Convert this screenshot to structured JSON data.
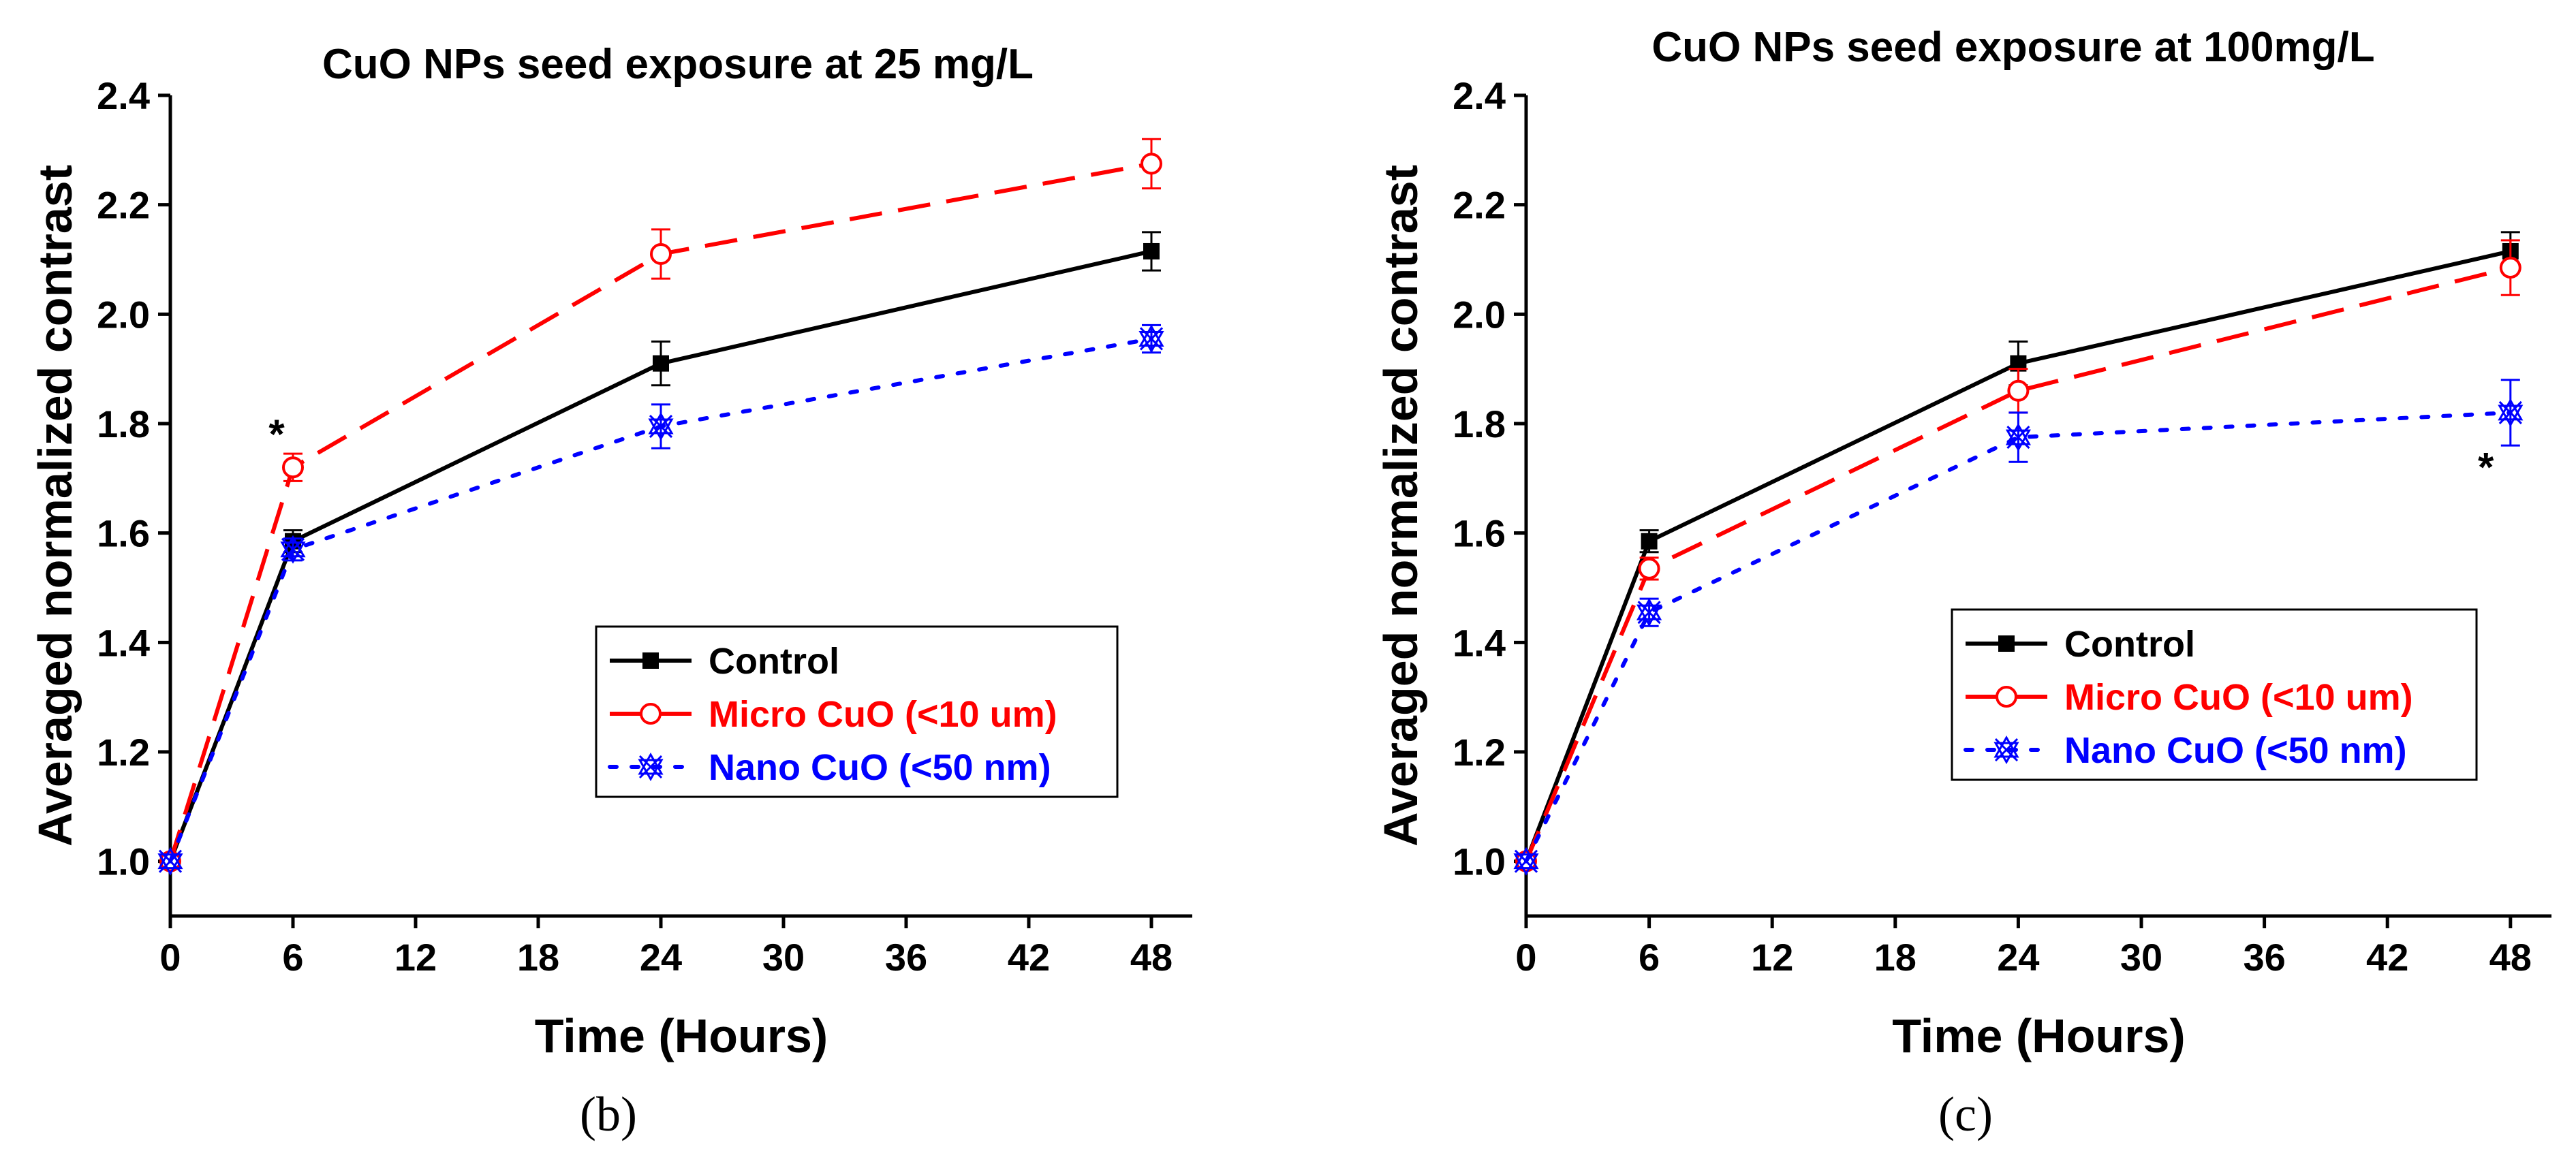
{
  "chart_data": [
    {
      "type": "line",
      "panel_label": "(b)",
      "title": "CuO NPs seed exposure at 25 mg/L",
      "xlabel": "Time (Hours)",
      "ylabel": "Averaged normalized contrast",
      "xlim": [
        0,
        50
      ],
      "ylim": [
        0.9,
        2.4
      ],
      "xticks": [
        0,
        6,
        12,
        18,
        24,
        30,
        36,
        42,
        48
      ],
      "yticks": [
        1.0,
        1.2,
        1.4,
        1.6,
        1.8,
        2.0,
        2.2,
        2.4
      ],
      "x": [
        0,
        6,
        24,
        48
      ],
      "series": [
        {
          "name": "Control",
          "color": "#000000",
          "dash": "solid",
          "marker": "filled-square",
          "values": [
            1.0,
            1.585,
            1.91,
            2.115
          ],
          "errors": [
            0.0,
            0.02,
            0.04,
            0.035
          ]
        },
        {
          "name": "Micro CuO (<10 um)",
          "color": "#ff0000",
          "dash": "dashed",
          "marker": "open-circle",
          "values": [
            1.0,
            1.72,
            2.11,
            2.275
          ],
          "errors": [
            0.0,
            0.025,
            0.045,
            0.045
          ]
        },
        {
          "name": "Nano CuO (<50 nm)",
          "color": "#0000ff",
          "dash": "dotted",
          "marker": "star-x",
          "values": [
            1.0,
            1.57,
            1.795,
            1.955
          ],
          "errors": [
            0.0,
            0.02,
            0.04,
            0.025
          ]
        }
      ],
      "annotations": [
        {
          "text": "*",
          "x": 5.2,
          "y": 1.78
        }
      ],
      "legend": "center-right"
    },
    {
      "type": "line",
      "panel_label": "(c)",
      "title": "CuO NPs seed exposure at 100mg/L",
      "xlabel": "Time (Hours)",
      "ylabel": "Averaged normalized contrast",
      "xlim": [
        0,
        50
      ],
      "ylim": [
        0.9,
        2.4
      ],
      "xticks": [
        0,
        6,
        12,
        18,
        24,
        30,
        36,
        42,
        48
      ],
      "yticks": [
        1.0,
        1.2,
        1.4,
        1.6,
        1.8,
        2.0,
        2.2,
        2.4
      ],
      "x": [
        0,
        6,
        24,
        48
      ],
      "series": [
        {
          "name": "Control",
          "color": "#000000",
          "dash": "solid",
          "marker": "filled-square",
          "values": [
            1.0,
            1.585,
            1.91,
            2.115
          ],
          "errors": [
            0.0,
            0.02,
            0.04,
            0.035
          ]
        },
        {
          "name": "Micro CuO (<10 um)",
          "color": "#ff0000",
          "dash": "dashed",
          "marker": "open-circle",
          "values": [
            1.0,
            1.535,
            1.86,
            2.085
          ],
          "errors": [
            0.0,
            0.02,
            0.04,
            0.05
          ]
        },
        {
          "name": "Nano CuO (<50 nm)",
          "color": "#0000ff",
          "dash": "dotted",
          "marker": "star-x",
          "values": [
            1.0,
            1.455,
            1.775,
            1.82
          ],
          "errors": [
            0.0,
            0.025,
            0.045,
            0.06
          ]
        }
      ],
      "annotations": [
        {
          "text": "*",
          "x": 46.8,
          "y": 1.72
        }
      ],
      "legend": "lower-right"
    }
  ]
}
